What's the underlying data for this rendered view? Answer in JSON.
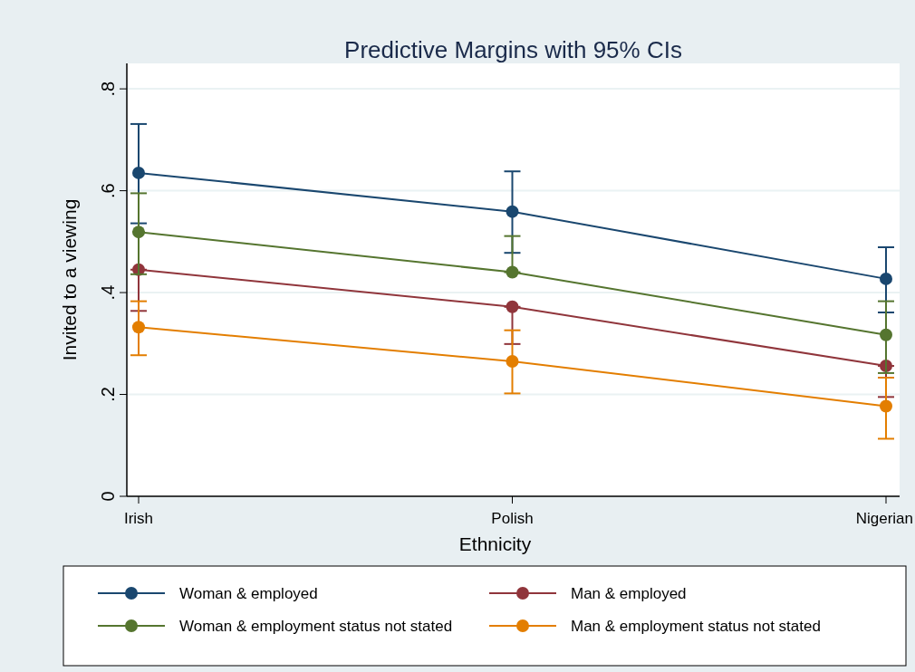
{
  "chart_data": {
    "type": "line",
    "title": "Predictive Margins with 95% CIs",
    "xlabel": "Ethnicity",
    "ylabel": "Invited to a viewing",
    "categories": [
      "Irish",
      "Polish",
      "Nigerian"
    ],
    "series": [
      {
        "name": "Woman & employed",
        "color": "#1a476f",
        "values": [
          0.635,
          0.559,
          0.427
        ],
        "errors": [
          [
            0.536,
            0.731
          ],
          [
            0.478,
            0.638
          ],
          [
            0.361,
            0.489
          ]
        ]
      },
      {
        "name": "Man & employed",
        "color": "#90353b",
        "values": [
          0.445,
          0.372,
          0.256
        ],
        "errors": [
          [
            0.364,
            0.445
          ],
          [
            0.299,
            0.372
          ],
          [
            0.195,
            0.256
          ]
        ]
      },
      {
        "name": "Woman & employment status not stated",
        "color": "#55752f",
        "values": [
          0.519,
          0.44,
          0.317
        ],
        "errors": [
          [
            0.436,
            0.595
          ],
          [
            0.44,
            0.511
          ],
          [
            0.242,
            0.383
          ]
        ]
      },
      {
        "name": "Man & employment status not stated",
        "color": "#e37e00",
        "values": [
          0.332,
          0.265,
          0.177
        ],
        "errors": [
          [
            0.277,
            0.383
          ],
          [
            0.202,
            0.326
          ],
          [
            0.113,
            0.233
          ]
        ]
      }
    ],
    "ylim": [
      0,
      0.85
    ],
    "yticks": [
      0,
      {
        "value": 0.2,
        "label": ".2"
      },
      {
        "value": 0.4,
        "label": ".4"
      },
      {
        "value": 0.6,
        "label": ".6"
      },
      {
        "value": 0.8,
        "label": ".8"
      }
    ],
    "grid": "y",
    "legend": "bottom",
    "marker": "circle",
    "line_style": "solid"
  }
}
